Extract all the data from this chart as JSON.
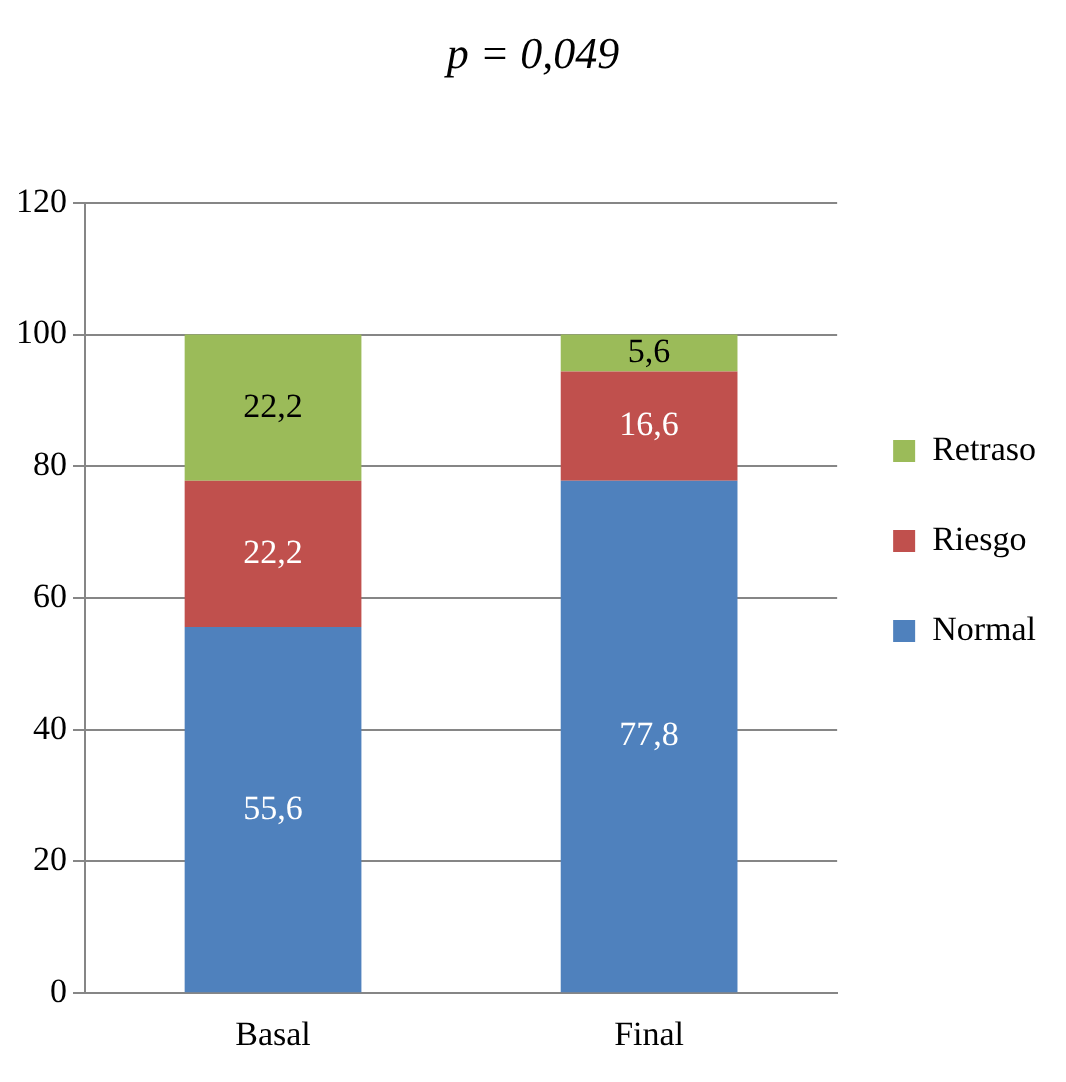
{
  "chart_data": {
    "type": "bar",
    "title": "p = 0,049",
    "categories": [
      "Basal",
      "Final"
    ],
    "stacked": true,
    "series": [
      {
        "name": "Normal",
        "color": "#4f81bd",
        "values": [
          55.6,
          77.8
        ],
        "value_labels": [
          "55,6",
          "77,8"
        ]
      },
      {
        "name": "Riesgo",
        "color": "#c0504d",
        "values": [
          22.2,
          16.6
        ],
        "value_labels": [
          "22,2",
          "16,6"
        ]
      },
      {
        "name": "Retraso",
        "color": "#9bbb59",
        "values": [
          22.2,
          5.6
        ],
        "value_labels": [
          "22,2",
          "5,6"
        ]
      }
    ],
    "ylim": [
      0,
      120
    ],
    "yticks": [
      0,
      20,
      40,
      60,
      80,
      100,
      120
    ],
    "grid": "y",
    "legend": "right"
  }
}
